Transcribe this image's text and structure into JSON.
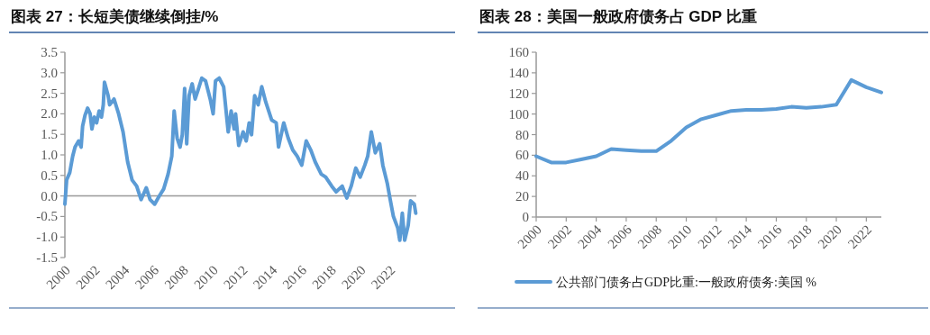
{
  "chart_data": [
    {
      "type": "line",
      "title": "图表 27：长短美债继续倒挂/%",
      "series": [
        {
          "color": "#5b9bd5",
          "x": [
            2000.0,
            2000.12,
            2000.33,
            2000.53,
            2000.69,
            2000.93,
            2001.1,
            2001.2,
            2001.36,
            2001.54,
            2001.71,
            2001.83,
            2001.99,
            2002.15,
            2002.32,
            2002.48,
            2002.6,
            2002.68,
            2002.93,
            2003.03,
            2003.33,
            2003.64,
            2003.94,
            2004.25,
            2004.55,
            2004.86,
            2005.16,
            2005.51,
            2005.77,
            2006.08,
            2006.38,
            2006.69,
            2006.99,
            2007.24,
            2007.4,
            2007.6,
            2007.8,
            2007.95,
            2008.11,
            2008.25,
            2008.41,
            2008.62,
            2008.82,
            2009.02,
            2009.27,
            2009.53,
            2009.84,
            2010.04,
            2010.2,
            2010.45,
            2010.75,
            2011.06,
            2011.26,
            2011.46,
            2011.56,
            2011.77,
            2012.07,
            2012.28,
            2012.48,
            2012.64,
            2012.85,
            2013.09,
            2013.33,
            2013.6,
            2014.0,
            2014.31,
            2014.47,
            2014.82,
            2015.12,
            2015.43,
            2015.73,
            2016.04,
            2016.34,
            2016.65,
            2016.95,
            2017.36,
            2017.66,
            2018.07,
            2018.37,
            2018.78,
            2019.09,
            2019.39,
            2019.7,
            2020.0,
            2020.31,
            2020.51,
            2020.75,
            2021.02,
            2021.32,
            2021.53,
            2021.83,
            2022.03,
            2022.24,
            2022.54,
            2022.68,
            2022.85,
            2023.01,
            2023.25,
            2023.41,
            2023.66,
            2023.76
          ],
          "values": [
            -0.2,
            0.39,
            0.57,
            0.97,
            1.19,
            1.34,
            1.19,
            1.7,
            1.96,
            2.14,
            2.0,
            1.63,
            1.92,
            1.78,
            2.07,
            1.92,
            2.22,
            2.77,
            2.44,
            2.22,
            2.36,
            2.0,
            1.56,
            0.83,
            0.39,
            0.24,
            -0.09,
            0.2,
            -0.09,
            -0.2,
            -0.01,
            0.17,
            0.53,
            0.97,
            2.07,
            1.41,
            1.19,
            1.49,
            2.62,
            1.27,
            2.44,
            2.73,
            2.36,
            2.58,
            2.87,
            2.8,
            2.36,
            2.0,
            2.8,
            2.87,
            2.66,
            1.56,
            2.07,
            1.63,
            2.0,
            1.23,
            1.56,
            1.34,
            1.78,
            1.49,
            2.44,
            2.22,
            2.66,
            2.29,
            1.85,
            1.78,
            1.19,
            1.78,
            1.41,
            1.12,
            0.97,
            0.75,
            1.34,
            1.12,
            0.83,
            0.53,
            0.46,
            0.24,
            0.1,
            0.24,
            -0.05,
            0.24,
            0.68,
            0.46,
            0.75,
            0.97,
            1.56,
            1.05,
            1.27,
            0.75,
            0.31,
            -0.09,
            -0.49,
            -0.78,
            -1.08,
            -0.42,
            -1.08,
            -0.71,
            -0.12,
            -0.2,
            -0.42
          ]
        }
      ],
      "xlim": [
        2000,
        2023.8
      ],
      "xticks": [
        2000,
        2002,
        2004,
        2006,
        2008,
        2010,
        2012,
        2014,
        2016,
        2018,
        2020,
        2022
      ],
      "ylim": [
        -1.5,
        3.5
      ],
      "yticks": [
        {
          "value": -1.5,
          "label": "-1.5"
        },
        {
          "value": -1,
          "label": "-1.0"
        },
        {
          "value": -0.5,
          "label": "-0.5"
        },
        {
          "value": 0,
          "label": "0.0"
        },
        {
          "value": 0.5,
          "label": "0.5"
        },
        {
          "value": 1,
          "label": "1.0"
        },
        {
          "value": 1.5,
          "label": "1.5"
        },
        {
          "value": 2,
          "label": "2.0"
        },
        {
          "value": 2.5,
          "label": "2.5"
        },
        {
          "value": 3,
          "label": "3.0"
        },
        {
          "value": 3.5,
          "label": "3.5"
        }
      ],
      "ref_lines": [
        {
          "axis": "y",
          "value": 0,
          "color": "#999999"
        }
      ],
      "legend": false
    },
    {
      "type": "line",
      "title": "图表 28：美国一般政府债务占 GDP 比重",
      "series": [
        {
          "name": "公共部门债务占GDP比重:一般政府债务:美国 %",
          "color": "#5b9bd5",
          "x": [
            2000,
            2001,
            2002,
            2003,
            2004,
            2005,
            2006,
            2007,
            2008,
            2009,
            2010,
            2011,
            2012,
            2013,
            2014,
            2015,
            2016,
            2017,
            2018,
            2019,
            2020,
            2021,
            2022,
            2023
          ],
          "values": [
            59,
            53,
            53,
            56,
            59,
            66,
            65,
            64,
            64,
            74,
            87,
            95,
            99,
            103,
            104,
            104,
            105,
            107,
            106,
            107,
            109,
            133,
            126,
            121
          ]
        }
      ],
      "xlim": [
        2000,
        2023
      ],
      "xticks": [
        2000,
        2002,
        2004,
        2006,
        2008,
        2010,
        2012,
        2014,
        2016,
        2018,
        2020,
        2022
      ],
      "ylim": [
        0,
        160
      ],
      "yticks": [
        0,
        20,
        40,
        60,
        80,
        100,
        120,
        140,
        160
      ],
      "grid": false,
      "legend": "bottom"
    }
  ]
}
